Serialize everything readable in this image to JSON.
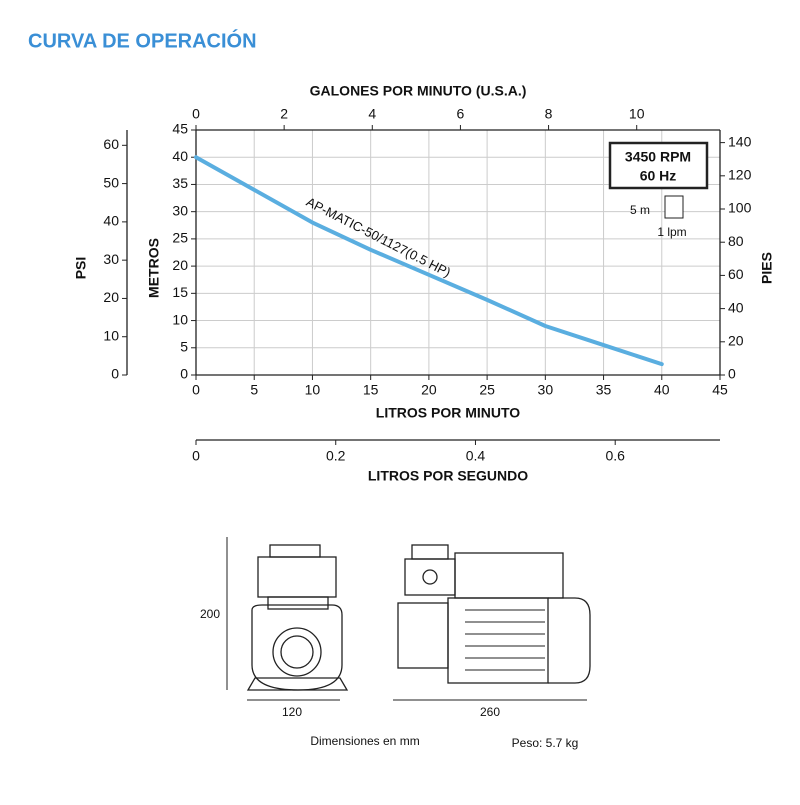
{
  "chart_data": {
    "type": "line",
    "title": "CURVA DE OPERACIÓN",
    "x_label": "LITROS POR MINUTO",
    "xlim": [
      0,
      45
    ],
    "xticks": [
      0,
      5,
      10,
      15,
      20,
      25,
      30,
      35,
      40,
      45
    ],
    "x2_label": "GALONES POR MINUTO (U.S.A.)",
    "x2lim": [
      0,
      11.89
    ],
    "x2ticks": [
      0,
      2,
      4,
      6,
      8,
      10
    ],
    "x3_label": "LITROS POR SEGUNDO",
    "x3lim": [
      0,
      0.75
    ],
    "x3ticks": [
      0,
      0.2,
      0.4,
      0.6
    ],
    "y_label": "METROS",
    "ylim": [
      0,
      45
    ],
    "yticks": [
      0,
      5,
      10,
      15,
      20,
      25,
      30,
      35,
      40,
      45
    ],
    "y2_label": "PIES",
    "y2lim": [
      0,
      147.6
    ],
    "y2ticks": [
      0,
      20,
      40,
      60,
      80,
      100,
      120,
      140
    ],
    "y3_label": "PSI",
    "y3lim": [
      0,
      64
    ],
    "y3ticks": [
      0,
      10,
      20,
      30,
      40,
      50,
      60
    ],
    "grid": true,
    "series": [
      {
        "name": "AP-MATIC-50/1127(0.5 HP)",
        "color": "#5aaee0",
        "x": [
          0,
          5,
          10,
          15,
          20,
          25,
          30,
          35,
          40
        ],
        "values": [
          40,
          34,
          28,
          23,
          18.4,
          13.8,
          9,
          5.5,
          2
        ]
      }
    ],
    "annotations": {
      "speed": "3450 RPM",
      "frequency": "60 Hz",
      "grid_height": "5 m",
      "grid_width": "1 lpm"
    }
  },
  "dimensions": {
    "height": "200",
    "width": "120",
    "length": "260",
    "units_note": "Dimensiones en mm",
    "weight": "Peso: 5.7 kg"
  }
}
